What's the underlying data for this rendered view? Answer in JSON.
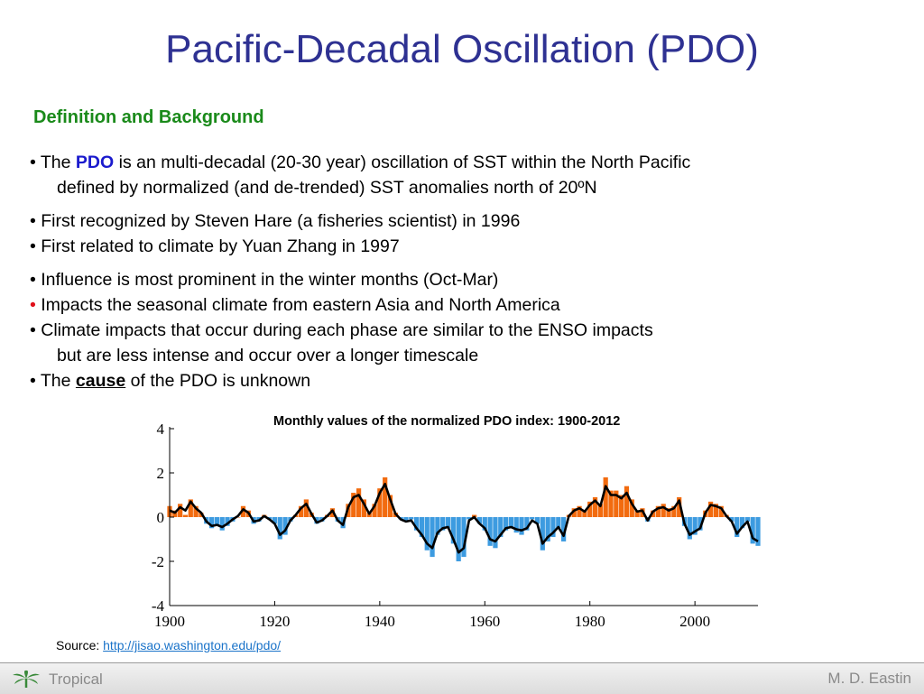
{
  "slide": {
    "title": "Pacific-Decadal Oscillation (PDO)",
    "subtitle": "Definition and Background",
    "bullets": {
      "b1_pre": "• The ",
      "b1_hl": "PDO",
      "b1_post": " is an multi-decadal (20-30 year) oscillation of SST within the North Pacific",
      "b1_line2": "defined by normalized (and de-trended) SST anomalies north of 20ºN",
      "b2": "• First recognized by Steven Hare (a fisheries scientist) in 1996",
      "b3": "• First related to climate by Yuan Zhang in 1997",
      "b4": "• Influence is most prominent in the winter months (Oct-Mar)",
      "b5_dot": "•",
      "b5_text": " Impacts the seasonal climate from eastern Asia and North America",
      "b6": "• Climate impacts that occur during each phase are similar to the ENSO impacts",
      "b6_line2": "but are less intense and occur over a longer timescale",
      "b7_pre": "• The ",
      "b7_hl": "cause",
      "b7_post": " of the PDO is unknown"
    },
    "source_label": "Source: ",
    "source_link": "http://jisao.washington.edu/pdo/"
  },
  "footer": {
    "left": "Tropical",
    "right": "M. D. Eastin",
    "icon": "palm-logo-icon"
  },
  "colors": {
    "title": "#2e3192",
    "subtitle": "#1a8a1a",
    "positive": "#f26b0f",
    "negative": "#3d9be0",
    "smoothed": "#000000",
    "highlight": "#1a1acd",
    "red_dot": "#e0101a"
  },
  "chart_data": {
    "type": "bar",
    "title": "Monthly values of the normalized PDO index: 1900-2012",
    "xlabel": "",
    "ylabel": "",
    "xlim": [
      1900,
      2012
    ],
    "ylim": [
      -4,
      4
    ],
    "xticks": [
      1900,
      1920,
      1940,
      1960,
      1980,
      2000
    ],
    "yticks": [
      4,
      2,
      0,
      -2,
      -4
    ],
    "yticklabels": [
      "4",
      "2",
      "0",
      "-2",
      "-4"
    ],
    "grid": false,
    "series": [
      {
        "style": "monthly bars shaded orange (positive) / blue (negative)",
        "x": [
          1900,
          1901,
          1902,
          1903,
          1904,
          1905,
          1906,
          1907,
          1908,
          1909,
          1910,
          1911,
          1912,
          1913,
          1914,
          1915,
          1916,
          1917,
          1918,
          1919,
          1920,
          1921,
          1922,
          1923,
          1924,
          1925,
          1926,
          1927,
          1928,
          1929,
          1930,
          1931,
          1932,
          1933,
          1934,
          1935,
          1936,
          1937,
          1938,
          1939,
          1940,
          1941,
          1942,
          1943,
          1944,
          1945,
          1946,
          1947,
          1948,
          1949,
          1950,
          1951,
          1952,
          1953,
          1954,
          1955,
          1956,
          1957,
          1958,
          1959,
          1960,
          1961,
          1962,
          1963,
          1964,
          1965,
          1966,
          1967,
          1968,
          1969,
          1970,
          1971,
          1972,
          1973,
          1974,
          1975,
          1976,
          1977,
          1978,
          1979,
          1980,
          1981,
          1982,
          1983,
          1984,
          1985,
          1986,
          1987,
          1988,
          1989,
          1990,
          1991,
          1992,
          1993,
          1994,
          1995,
          1996,
          1997,
          1998,
          1999,
          2000,
          2001,
          2002,
          2003,
          2004,
          2005,
          2006,
          2007,
          2008,
          2009,
          2010,
          2011,
          2012
        ],
        "values": [
          0.5,
          0.3,
          0.6,
          0.1,
          0.8,
          0.5,
          0.2,
          -0.3,
          -0.5,
          -0.4,
          -0.6,
          -0.4,
          -0.2,
          0.0,
          0.5,
          0.3,
          -0.3,
          -0.2,
          0.1,
          -0.1,
          -0.3,
          -1.0,
          -0.8,
          -0.2,
          0.1,
          0.5,
          0.8,
          0.2,
          -0.3,
          -0.2,
          0.1,
          0.4,
          -0.2,
          -0.5,
          0.6,
          1.1,
          1.3,
          0.8,
          0.2,
          0.6,
          1.3,
          1.8,
          1.0,
          0.2,
          -0.1,
          -0.2,
          -0.1,
          -0.6,
          -0.9,
          -1.5,
          -1.8,
          -0.8,
          -0.6,
          -0.5,
          -1.2,
          -2.0,
          -1.8,
          -0.1,
          0.1,
          -0.3,
          -0.6,
          -1.3,
          -1.4,
          -0.9,
          -0.6,
          -0.5,
          -0.7,
          -0.8,
          -0.6,
          -0.1,
          -0.3,
          -1.5,
          -1.1,
          -0.9,
          -0.5,
          -1.1,
          0.1,
          0.4,
          0.5,
          0.3,
          0.7,
          0.9,
          0.6,
          1.8,
          1.2,
          1.2,
          1.0,
          1.4,
          0.8,
          0.3,
          0.4,
          -0.2,
          0.3,
          0.5,
          0.6,
          0.4,
          0.5,
          0.9,
          -0.4,
          -1.0,
          -0.8,
          -0.6,
          0.3,
          0.7,
          0.6,
          0.5,
          0.1,
          -0.2,
          -0.9,
          -0.5,
          -0.2,
          -1.2,
          -1.3
        ]
      },
      {
        "style": "smoothed running mean (black line)",
        "x": [
          1900,
          1901,
          1902,
          1903,
          1904,
          1905,
          1906,
          1907,
          1908,
          1909,
          1910,
          1911,
          1912,
          1913,
          1914,
          1915,
          1916,
          1917,
          1918,
          1919,
          1920,
          1921,
          1922,
          1923,
          1924,
          1925,
          1926,
          1927,
          1928,
          1929,
          1930,
          1931,
          1932,
          1933,
          1934,
          1935,
          1936,
          1937,
          1938,
          1939,
          1940,
          1941,
          1942,
          1943,
          1944,
          1945,
          1946,
          1947,
          1948,
          1949,
          1950,
          1951,
          1952,
          1953,
          1954,
          1955,
          1956,
          1957,
          1958,
          1959,
          1960,
          1961,
          1962,
          1963,
          1964,
          1965,
          1966,
          1967,
          1968,
          1969,
          1970,
          1971,
          1972,
          1973,
          1974,
          1975,
          1976,
          1977,
          1978,
          1979,
          1980,
          1981,
          1982,
          1983,
          1984,
          1985,
          1986,
          1987,
          1988,
          1989,
          1990,
          1991,
          1992,
          1993,
          1994,
          1995,
          1996,
          1997,
          1998,
          1999,
          2000,
          2001,
          2002,
          2003,
          2004,
          2005,
          2006,
          2007,
          2008,
          2009,
          2010,
          2011,
          2012
        ],
        "values": [
          0.3,
          0.2,
          0.45,
          0.3,
          0.7,
          0.4,
          0.2,
          -0.2,
          -0.4,
          -0.35,
          -0.45,
          -0.3,
          -0.1,
          0.05,
          0.35,
          0.2,
          -0.2,
          -0.15,
          0.05,
          -0.1,
          -0.3,
          -0.8,
          -0.6,
          -0.15,
          0.1,
          0.4,
          0.6,
          0.15,
          -0.25,
          -0.15,
          0.05,
          0.3,
          -0.15,
          -0.35,
          0.45,
          0.9,
          1.0,
          0.6,
          0.15,
          0.5,
          1.1,
          1.5,
          0.8,
          0.15,
          -0.1,
          -0.2,
          -0.15,
          -0.5,
          -0.8,
          -1.2,
          -1.4,
          -0.7,
          -0.5,
          -0.45,
          -1.0,
          -1.6,
          -1.4,
          -0.15,
          0.0,
          -0.3,
          -0.5,
          -1.0,
          -1.1,
          -0.8,
          -0.5,
          -0.45,
          -0.55,
          -0.6,
          -0.5,
          -0.15,
          -0.3,
          -1.2,
          -0.9,
          -0.7,
          -0.45,
          -0.85,
          0.05,
          0.3,
          0.4,
          0.25,
          0.55,
          0.75,
          0.5,
          1.4,
          1.0,
          1.0,
          0.85,
          1.1,
          0.6,
          0.25,
          0.3,
          -0.15,
          0.25,
          0.4,
          0.45,
          0.3,
          0.4,
          0.75,
          -0.3,
          -0.8,
          -0.65,
          -0.5,
          0.2,
          0.55,
          0.5,
          0.4,
          0.05,
          -0.2,
          -0.75,
          -0.45,
          -0.2,
          -0.95,
          -1.1
        ]
      }
    ]
  }
}
